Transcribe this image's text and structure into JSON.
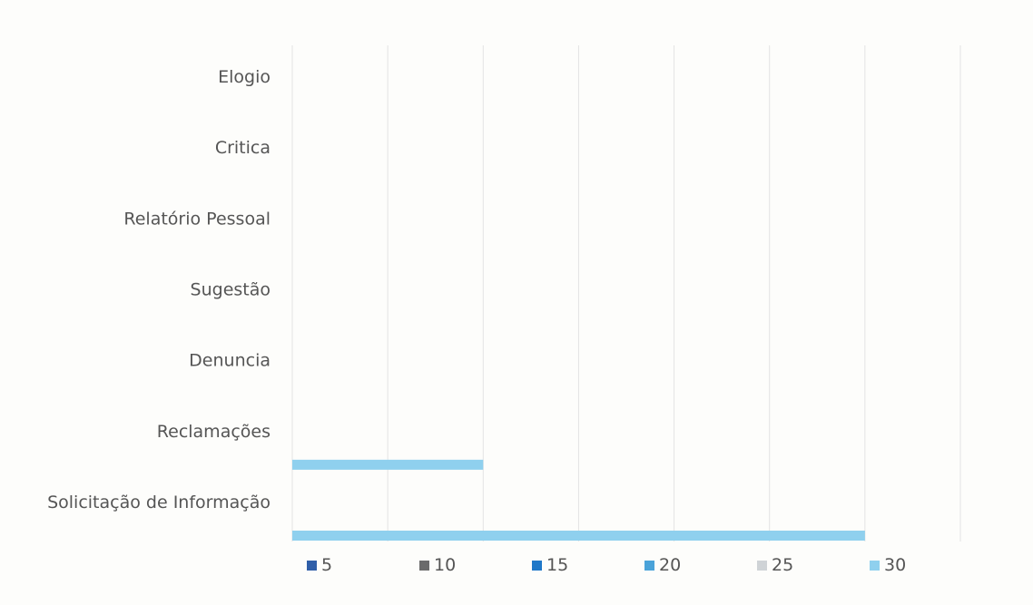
{
  "chart_data": {
    "type": "bar",
    "orientation": "horizontal",
    "categories": [
      "Elogio",
      "Critica",
      "Relatório Pessoal",
      "Sugestão",
      "Denuncia",
      "Reclamações",
      "Solicitação de Informação"
    ],
    "series": [
      {
        "name": "5",
        "color": "#2f5ea8",
        "values": [
          0,
          0,
          0,
          0,
          0,
          0,
          0
        ]
      },
      {
        "name": "10",
        "color": "#6b6b6b",
        "values": [
          0,
          0,
          0,
          0,
          0,
          0,
          0
        ]
      },
      {
        "name": "15",
        "color": "#1f78c8",
        "values": [
          0,
          0,
          0,
          0,
          0,
          0,
          0
        ]
      },
      {
        "name": "20",
        "color": "#4aa3d9",
        "values": [
          0,
          0,
          0,
          0,
          0,
          0,
          0
        ]
      },
      {
        "name": "25",
        "color": "#cfd3d6",
        "values": [
          0,
          0,
          0,
          0,
          0,
          0,
          0
        ]
      },
      {
        "name": "30",
        "color": "#8fd0ee",
        "values": [
          0,
          0,
          0,
          0,
          0,
          10,
          30
        ]
      }
    ],
    "xlim": [
      0,
      35
    ],
    "grid": true,
    "legend_position": "bottom",
    "title": "",
    "xlabel": "",
    "ylabel": ""
  }
}
